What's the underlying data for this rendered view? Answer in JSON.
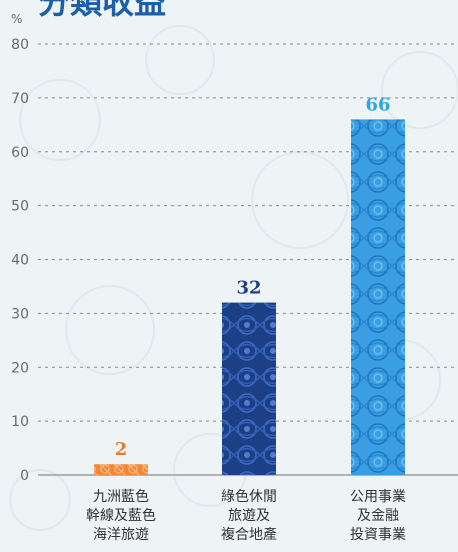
{
  "title": "分類收益",
  "unit": "%",
  "colors": {
    "title": "#1b5fa6",
    "axis_text": "#6a6a6a",
    "grid": "#8c8c8c"
  },
  "chart_data": {
    "type": "bar",
    "title": "分類收益",
    "ylabel": "%",
    "ylim": [
      0,
      80
    ],
    "yticks": [
      0,
      10,
      20,
      30,
      40,
      50,
      60,
      70,
      80
    ],
    "grid": true,
    "categories": [
      "九洲藍色\n幹線及藍色\n海洋旅遊",
      "綠色休閒\n旅遊及\n複合地產",
      "公用事業\n及金融\n投資事業"
    ],
    "values": [
      2,
      32,
      66
    ],
    "value_labels": [
      "2",
      "32",
      "66"
    ],
    "bar_colors": [
      "#f0883a",
      "#1d3f86",
      "#3a9fe0"
    ],
    "label_colors": [
      "#ea7a2a",
      "#1d3f86",
      "#2ea7e0"
    ]
  }
}
